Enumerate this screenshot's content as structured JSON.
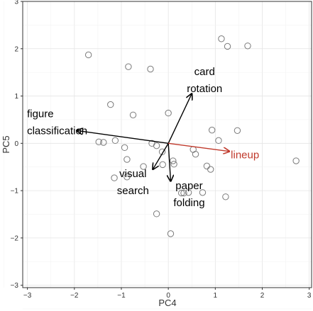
{
  "chart_data": {
    "type": "scatter",
    "title": "",
    "xlabel": "PC4",
    "ylabel": "PC5",
    "xlim": [
      -3.1,
      3.05
    ],
    "ylim": [
      -3.05,
      3.0
    ],
    "x_ticks": [
      -3,
      -2,
      -1,
      0,
      1,
      2,
      3
    ],
    "y_ticks": [
      -3,
      -2,
      -1,
      0,
      1,
      2,
      3
    ],
    "grid": true,
    "points": [
      {
        "x": -1.7,
        "y": 1.87
      },
      {
        "x": -0.85,
        "y": 1.62
      },
      {
        "x": -0.38,
        "y": 1.57
      },
      {
        "x": 1.13,
        "y": 2.21
      },
      {
        "x": 1.26,
        "y": 2.05
      },
      {
        "x": 1.69,
        "y": 2.06
      },
      {
        "x": -1.23,
        "y": 0.82
      },
      {
        "x": -0.75,
        "y": 0.6
      },
      {
        "x": 0.0,
        "y": 0.64
      },
      {
        "x": -1.48,
        "y": 0.03
      },
      {
        "x": -1.38,
        "y": 0.02
      },
      {
        "x": -1.13,
        "y": 0.06
      },
      {
        "x": -0.93,
        "y": -0.09
      },
      {
        "x": -0.35,
        "y": 0.0
      },
      {
        "x": -0.25,
        "y": -0.05
      },
      {
        "x": -0.13,
        "y": -0.18
      },
      {
        "x": 0.53,
        "y": -0.13
      },
      {
        "x": 0.58,
        "y": -0.23
      },
      {
        "x": 0.93,
        "y": 0.28
      },
      {
        "x": 1.07,
        "y": 0.06
      },
      {
        "x": 1.47,
        "y": 0.27
      },
      {
        "x": 2.72,
        "y": -0.37
      },
      {
        "x": -0.88,
        "y": -0.34
      },
      {
        "x": -0.53,
        "y": -0.49
      },
      {
        "x": -0.12,
        "y": -0.45
      },
      {
        "x": 0.1,
        "y": -0.37
      },
      {
        "x": 0.12,
        "y": -0.44
      },
      {
        "x": 0.82,
        "y": -0.48
      },
      {
        "x": 0.9,
        "y": -0.55
      },
      {
        "x": -1.15,
        "y": -0.73
      },
      {
        "x": -0.88,
        "y": -0.71
      },
      {
        "x": 0.28,
        "y": -1.05
      },
      {
        "x": 0.33,
        "y": -1.05
      },
      {
        "x": 0.43,
        "y": -1.04
      },
      {
        "x": 0.73,
        "y": -1.04
      },
      {
        "x": 1.22,
        "y": -1.13
      },
      {
        "x": -0.25,
        "y": -1.49
      },
      {
        "x": 0.05,
        "y": -1.91
      }
    ],
    "arrows": [
      {
        "name": "card rotation",
        "label_lines": [
          "card",
          "rotation"
        ],
        "x_end": 0.5,
        "y_end": 1.05,
        "color": "#000000"
      },
      {
        "name": "figure classification",
        "label_lines": [
          "figure",
          "classification"
        ],
        "x_end": -1.95,
        "y_end": 0.27,
        "color": "#000000"
      },
      {
        "name": "visual search",
        "label_lines": [
          "visual",
          "search"
        ],
        "x_end": -0.33,
        "y_end": -0.55,
        "color": "#000000"
      },
      {
        "name": "paper folding",
        "label_lines": [
          "paper",
          "folding"
        ],
        "x_end": 0.05,
        "y_end": -0.8,
        "color": "#000000"
      },
      {
        "name": "lineup",
        "label_lines": [
          "lineup"
        ],
        "x_end": 1.3,
        "y_end": -0.17,
        "color": "#c0392b"
      }
    ]
  }
}
